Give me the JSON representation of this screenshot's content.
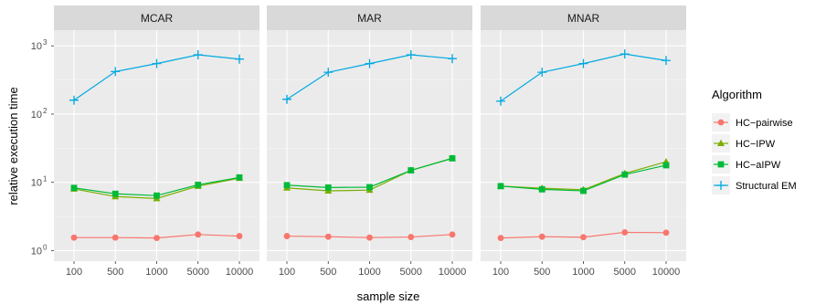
{
  "chart_data": {
    "type": "line",
    "facet_by": "missingness mechanism",
    "facets": [
      "MCAR",
      "MAR",
      "MNAR"
    ],
    "x": [
      "100",
      "500",
      "1000",
      "5000",
      "10000"
    ],
    "xlabel": "sample size",
    "ylabel": "relative execution time",
    "yscale": "log10",
    "ylim": [
      0.7,
      1700
    ],
    "yticks": [
      {
        "value": 1,
        "base": "10",
        "exp": "0"
      },
      {
        "value": 10,
        "base": "10",
        "exp": "1"
      },
      {
        "value": 100,
        "base": "10",
        "exp": "2"
      },
      {
        "value": 1000,
        "base": "10",
        "exp": "3"
      }
    ],
    "grid": true,
    "legend": {
      "title": "Algorithm",
      "placement": "right"
    },
    "series": [
      {
        "name": "HC−pairwise",
        "color": "#F8766D",
        "marker": "circle",
        "values": {
          "MCAR": [
            1.55,
            1.55,
            1.53,
            1.72,
            1.63
          ],
          "MAR": [
            1.63,
            1.6,
            1.55,
            1.58,
            1.72
          ],
          "MNAR": [
            1.53,
            1.6,
            1.57,
            1.85,
            1.83
          ]
        }
      },
      {
        "name": "HC−IPW",
        "color": "#7CAE00",
        "marker": "triangle",
        "values": {
          "MCAR": [
            8.0,
            6.2,
            5.8,
            8.8,
            11.5
          ],
          "MAR": [
            8.3,
            7.5,
            7.7,
            15.0,
            22.5
          ],
          "MNAR": [
            8.8,
            8.2,
            7.8,
            13.5,
            20.0
          ]
        }
      },
      {
        "name": "HC−aIPW",
        "color": "#00BA38",
        "marker": "square",
        "values": {
          "MCAR": [
            8.3,
            6.8,
            6.4,
            9.2,
            11.8
          ],
          "MAR": [
            9.1,
            8.4,
            8.5,
            15.0,
            22.5
          ],
          "MNAR": [
            8.8,
            7.9,
            7.5,
            13.0,
            17.8
          ]
        }
      },
      {
        "name": "Structural EM",
        "color": "#00A9E0",
        "marker": "plus",
        "values": {
          "MCAR": [
            160,
            420,
            550,
            740,
            640
          ],
          "MAR": [
            165,
            410,
            550,
            740,
            650
          ],
          "MNAR": [
            155,
            410,
            550,
            760,
            610
          ]
        }
      }
    ]
  }
}
